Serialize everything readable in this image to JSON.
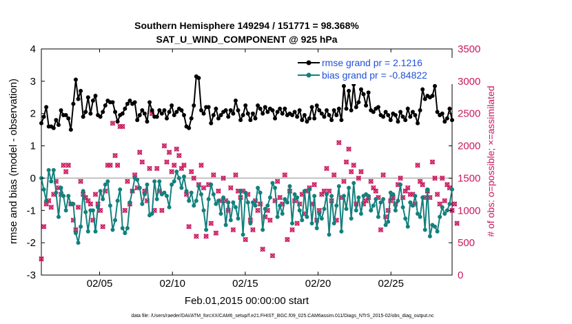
{
  "chart_data": {
    "type": "line",
    "title_line1": "Southern Hemisphere 149294 / 151771 = 98.368%",
    "title_line2": "SAT_U_WIND_COMPONENT @ 925 hPa",
    "xlabel": "Feb.01,2015 00:00:00 start",
    "ylabel_left": "rmse and bias (model - observation)",
    "ylabel_right": "# of obs: o=possible; ×=assimilated",
    "x_range": [
      1,
      29.2
    ],
    "y_left_range": [
      -3,
      4
    ],
    "y_right_range": [
      0,
      3500
    ],
    "x_ticks": [
      5,
      10,
      15,
      20,
      25
    ],
    "x_tick_labels": [
      "02/05",
      "02/10",
      "02/15",
      "02/20",
      "02/25"
    ],
    "y_left_ticks": [
      -3,
      -2,
      -1,
      0,
      1,
      2,
      3,
      4
    ],
    "y_right_ticks": [
      0,
      500,
      1000,
      1500,
      2000,
      2500,
      3000,
      3500
    ],
    "legend": [
      "rmse grand pr = 2.1216",
      "bias grand pr = -0.84822"
    ],
    "footer": "data file: /Users/raeder/DAI/ATM_forcXX/CAM6_setup/f.e21.FHIST_BGC.f09_025.CAM6assim.011/Diags_NTrS_2015-02/obs_diag_output.nc",
    "colors": {
      "rmse": "#000000",
      "bias": "#13807d",
      "obs": "#c8175d",
      "legend_text": "#1f4fd8",
      "zero_line": "#b0b0b0"
    },
    "series": [
      {
        "name": "rmse",
        "values": [
          1.7,
          1.9,
          2.2,
          1.6,
          1.6,
          1.55,
          1.8,
          1.65,
          2.1,
          1.95,
          1.95,
          1.85,
          1.5,
          2.3,
          3.05,
          2.45,
          2.7,
          1.9,
          2.05,
          2.5,
          2.0,
          2.4,
          2.55,
          1.95,
          1.9,
          2.05,
          2.25,
          2.4,
          2.35,
          2.35,
          2.05,
          1.75,
          1.95,
          2.0,
          2.15,
          2.3,
          2.4,
          2.3,
          2.35,
          1.8,
          1.95,
          2.1,
          2.0,
          1.75,
          2.35,
          2.1,
          1.9,
          1.9,
          2.1,
          2.0,
          2.1,
          1.85,
          2.05,
          2.25,
          1.95,
          2.05,
          2.15,
          2.1,
          1.95,
          1.6,
          1.55,
          1.85,
          2.25,
          3.15,
          3.1,
          2.1,
          2.0,
          2.2,
          2.2,
          1.7,
          1.95,
          2.15,
          1.85,
          1.95,
          2.05,
          2.1,
          1.9,
          2.1,
          2.0,
          2.4,
          2.1,
          1.8,
          1.95,
          2.25,
          2.0,
          1.8,
          2.0,
          1.85,
          2.25,
          2.15,
          2.0,
          2.2,
          2.05,
          2.15,
          2.1,
          1.85,
          2.05,
          2.15,
          2.0,
          2.15,
          1.95,
          2.0,
          1.95,
          2.05,
          1.9,
          2.1,
          1.8,
          1.95,
          1.75,
          1.85,
          2.2,
          1.85,
          2.25,
          2.1,
          2.0,
          1.9,
          2.1,
          1.95,
          1.8,
          2.1,
          1.95,
          2.15,
          1.8,
          2.85,
          2.15,
          2.7,
          2.1,
          2.9,
          2.2,
          2.35,
          2.75,
          2.6,
          2.25,
          2.65,
          2.1,
          2.05,
          2.15,
          2.2,
          1.95,
          1.9,
          2.05,
          1.95,
          1.8,
          2.0,
          1.95,
          1.75,
          2.05,
          1.9,
          1.8,
          2.15,
          1.9,
          2.05,
          1.95,
          1.7,
          2.1,
          2.75,
          2.45,
          2.55,
          2.5,
          2.55,
          2.85,
          2.05,
          1.95,
          2.0,
          1.75,
          1.85,
          2.15,
          1.8
        ]
      },
      {
        "name": "bias",
        "values": [
          0.0,
          -0.35,
          -0.7,
          0.25,
          -0.1,
          0.25,
          -0.45,
          -1.2,
          -0.3,
          -0.55,
          -1.0,
          -0.55,
          -0.8,
          -0.8,
          -1.7,
          -2.0,
          -1.5,
          -0.4,
          -1.05,
          -1.65,
          -1.0,
          -1.0,
          -1.65,
          -0.9,
          -0.4,
          -0.65,
          -0.2,
          -0.1,
          -0.85,
          -1.6,
          -1.3,
          -0.7,
          -0.35,
          -1.55,
          -1.7,
          -1.55,
          -0.75,
          -0.4,
          0.0,
          -0.05,
          -0.3,
          -0.8,
          -0.5,
          -0.2,
          -1.15,
          -1.1,
          -0.1,
          -0.65,
          -0.1,
          -0.5,
          -0.45,
          -0.55,
          -0.9,
          -0.2,
          -0.1,
          0.2,
          0.0,
          -0.3,
          0.05,
          -0.4,
          -0.7,
          -0.45,
          -0.85,
          -0.7,
          -0.25,
          -0.5,
          -1.0,
          -1.6,
          -0.65,
          -0.2,
          -0.5,
          -0.8,
          -0.7,
          -1.1,
          -0.6,
          -1.45,
          -0.75,
          -1.3,
          -0.75,
          -0.9,
          -1.25,
          -0.4,
          -1.75,
          -0.45,
          -0.75,
          -1.4,
          -0.75,
          -0.85,
          -0.3,
          -0.45,
          -1.6,
          -0.95,
          -0.85,
          -0.6,
          -0.15,
          -0.3,
          -1.2,
          -0.85,
          -1.1,
          -0.65,
          -0.75,
          -0.25,
          -1.4,
          -0.5,
          -0.6,
          -1.0,
          -1.3,
          -0.4,
          -1.2,
          -0.35,
          -1.4,
          -0.55,
          -1.55,
          -1.1,
          -1.25,
          -0.95,
          -0.5,
          -1.75,
          -0.55,
          -1.4,
          -0.85,
          -0.25,
          -1.65,
          -0.55,
          -0.95,
          -0.3,
          -1.25,
          -0.15,
          -1.0,
          -0.6,
          -1.1,
          -0.55,
          -0.5,
          -0.55,
          -1.0,
          -0.85,
          -0.65,
          -1.2,
          -0.75,
          -0.65,
          -1.45,
          -1.35,
          -0.45,
          -0.5,
          -1.0,
          -0.7,
          -0.2,
          -0.9,
          -1.25,
          -1.5,
          -0.75,
          -0.85,
          -0.55,
          -1.1,
          -1.2,
          -0.6,
          -1.6,
          -0.35,
          -1.8,
          -1.45,
          -1.5,
          -1.65,
          -1.2,
          -0.9,
          -1.1,
          -1.0,
          -0.8,
          -0.35
        ]
      },
      {
        "name": "obs_possible",
        "values": [
          250,
          750,
          1100,
          1150,
          1050,
          1250,
          1450,
          1350,
          1250,
          1700,
          1600,
          1700,
          1100,
          850,
          700,
          1050,
          1450,
          1250,
          1200,
          1150,
          1100,
          850,
          1250,
          1100,
          1000,
          750,
          1300,
          1700,
          1700,
          2350,
          1850,
          1700,
          2300,
          2300,
          1000,
          1450,
          1100,
          1300,
          1550,
          1350,
          1900,
          1750,
          1300,
          1150,
          1650,
          2500,
          1000,
          1650,
          1300,
          1000,
          2000,
          1750,
          1900,
          1600,
          1700,
          1950,
          1850,
          1650,
          1700,
          1250,
          750,
          1600,
          1500,
          600,
          1400,
          1700,
          1350,
          600,
          1400,
          800,
          1550,
          650,
          1300,
          1150,
          1500,
          1150,
          1000,
          1350,
          700,
          1550,
          1300,
          1200,
          1300,
          550,
          1250,
          850,
          700,
          1150,
          1000,
          1100,
          400,
          900,
          1000,
          850,
          300,
          1150,
          1450,
          1200,
          1100,
          1550,
          550,
          1300,
          700,
          1150,
          800,
          1100,
          1250,
          950,
          1300,
          1350,
          1100,
          1400,
          850,
          1000,
          1250,
          1300,
          1650,
          1300,
          1150,
          1550,
          850,
          2050,
          1200,
          1450,
          1750,
          1950,
          1600,
          1700,
          1100,
          1500,
          1600,
          1100,
          1150,
          1200,
          1450,
          1350,
          1300,
          1200,
          700,
          1550,
          900,
          1000,
          1150,
          1200,
          1100,
          1400,
          1500,
          1200,
          1300,
          1350,
          1250,
          1250,
          1100,
          1700,
          1450,
          1400,
          1200,
          1300,
          1200,
          1750,
          1500,
          1250,
          1100,
          1500,
          1150,
          1400,
          1350,
          1000,
          1100,
          800
        ]
      },
      {
        "name": "obs_assimilated",
        "values": [
          250,
          750,
          1100,
          1150,
          1050,
          1250,
          1450,
          1350,
          1250,
          1700,
          1600,
          1700,
          1100,
          850,
          700,
          1050,
          1450,
          1250,
          1200,
          1150,
          1100,
          850,
          1250,
          1100,
          1000,
          750,
          1300,
          1700,
          1700,
          2350,
          1850,
          1700,
          2300,
          2300,
          1000,
          1450,
          1100,
          1300,
          1550,
          1350,
          1900,
          1750,
          1300,
          1150,
          1650,
          2500,
          1000,
          1650,
          1300,
          1000,
          2000,
          1750,
          1900,
          1600,
          1700,
          1950,
          1850,
          1650,
          1700,
          1250,
          750,
          1600,
          1500,
          600,
          1400,
          1700,
          1350,
          600,
          1400,
          800,
          1550,
          650,
          1300,
          1150,
          1500,
          1150,
          1000,
          1350,
          700,
          1550,
          1300,
          1200,
          1300,
          550,
          1250,
          850,
          700,
          1150,
          1000,
          1100,
          400,
          900,
          1000,
          850,
          300,
          1150,
          1450,
          1200,
          1100,
          1550,
          550,
          1300,
          700,
          1150,
          800,
          1100,
          1250,
          950,
          1300,
          1350,
          1100,
          1400,
          850,
          1000,
          1250,
          1300,
          1650,
          1300,
          1150,
          1550,
          850,
          2050,
          1200,
          1450,
          1750,
          1950,
          1600,
          1700,
          1100,
          1500,
          1600,
          1100,
          1150,
          1200,
          1450,
          1350,
          1300,
          1200,
          700,
          1550,
          900,
          1000,
          1150,
          1200,
          1100,
          1400,
          1500,
          1200,
          1300,
          1350,
          1250,
          1250,
          1100,
          1700,
          1450,
          1400,
          1200,
          1300,
          1200,
          1750,
          1500,
          1250,
          1100,
          1500,
          1150,
          1400,
          1350,
          1000,
          1100,
          800
        ]
      }
    ]
  }
}
